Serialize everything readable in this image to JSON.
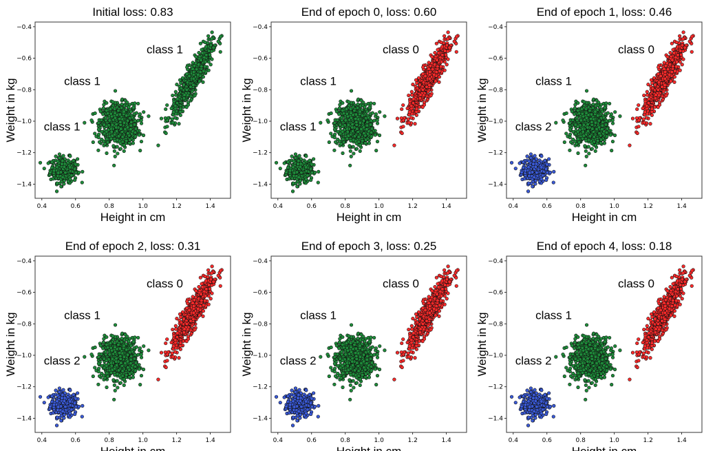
{
  "chart_data": [
    {
      "type": "scatter",
      "title": "Initial loss: 0.83",
      "xlabel": "Height in cm",
      "ylabel": "Weight in kg",
      "xlim": [
        0.36,
        1.52
      ],
      "ylim": [
        -1.49,
        -0.37
      ],
      "xticks": [
        "0.4",
        "0.6",
        "0.8",
        "1.0",
        "1.2",
        "1.4"
      ],
      "yticks": [
        "-0.4",
        "-0.6",
        "-0.8",
        "-1.0",
        "-1.2",
        "-1.4"
      ],
      "clusters": [
        {
          "label": "class 1",
          "color": "#1e8c3a",
          "center": [
            0.53,
            -1.31
          ],
          "n": 300
        },
        {
          "label": "class 1",
          "color": "#1e8c3a",
          "center": [
            0.86,
            -1.02
          ],
          "n": 800
        },
        {
          "label": "class 1",
          "color": "#1e8c3a",
          "center": [
            1.29,
            -0.74
          ],
          "n": 700
        }
      ]
    },
    {
      "type": "scatter",
      "title": "End of epoch 0, loss: 0.60",
      "xlabel": "Height in cm",
      "ylabel": "Weight in kg",
      "xlim": [
        0.36,
        1.52
      ],
      "ylim": [
        -1.49,
        -0.37
      ],
      "xticks": [
        "0.4",
        "0.6",
        "0.8",
        "1.0",
        "1.2",
        "1.4"
      ],
      "yticks": [
        "-0.4",
        "-0.6",
        "-0.8",
        "-1.0",
        "-1.2",
        "-1.4"
      ],
      "clusters": [
        {
          "label": "class 1",
          "color": "#1e8c3a",
          "center": [
            0.53,
            -1.31
          ],
          "n": 300
        },
        {
          "label": "class 1",
          "color": "#1e8c3a",
          "center": [
            0.86,
            -1.02
          ],
          "n": 800
        },
        {
          "label": "class 0",
          "color": "#ff2a2a",
          "center": [
            1.29,
            -0.74
          ],
          "n": 700
        }
      ]
    },
    {
      "type": "scatter",
      "title": "End of epoch 1, loss: 0.46",
      "xlabel": "Height in cm",
      "ylabel": "Weight in kg",
      "xlim": [
        0.36,
        1.52
      ],
      "ylim": [
        -1.49,
        -0.37
      ],
      "xticks": [
        "0.4",
        "0.6",
        "0.8",
        "1.0",
        "1.2",
        "1.4"
      ],
      "yticks": [
        "-0.4",
        "-0.6",
        "-0.8",
        "-1.0",
        "-1.2",
        "-1.4"
      ],
      "clusters": [
        {
          "label": "class 2",
          "color": "#3a5ad8",
          "center": [
            0.53,
            -1.31
          ],
          "n": 300
        },
        {
          "label": "class 1",
          "color": "#1e8c3a",
          "center": [
            0.86,
            -1.02
          ],
          "n": 800
        },
        {
          "label": "class 0",
          "color": "#ff2a2a",
          "center": [
            1.29,
            -0.74
          ],
          "n": 700
        }
      ]
    },
    {
      "type": "scatter",
      "title": "End of epoch 2, loss: 0.31",
      "xlabel": "Height in cm",
      "ylabel": "Weight in kg",
      "xlim": [
        0.36,
        1.52
      ],
      "ylim": [
        -1.49,
        -0.37
      ],
      "xticks": [
        "0.4",
        "0.6",
        "0.8",
        "1.0",
        "1.2",
        "1.4"
      ],
      "yticks": [
        "-0.4",
        "-0.6",
        "-0.8",
        "-1.0",
        "-1.2",
        "-1.4"
      ],
      "clusters": [
        {
          "label": "class 2",
          "color": "#3a5ad8",
          "center": [
            0.53,
            -1.31
          ],
          "n": 300
        },
        {
          "label": "class 1",
          "color": "#1e8c3a",
          "center": [
            0.86,
            -1.02
          ],
          "n": 800
        },
        {
          "label": "class 0",
          "color": "#ff2a2a",
          "center": [
            1.29,
            -0.74
          ],
          "n": 700
        }
      ]
    },
    {
      "type": "scatter",
      "title": "End of epoch 3, loss: 0.25",
      "xlabel": "Height in cm",
      "ylabel": "Weight in kg",
      "xlim": [
        0.36,
        1.52
      ],
      "ylim": [
        -1.49,
        -0.37
      ],
      "xticks": [
        "0.4",
        "0.6",
        "0.8",
        "1.0",
        "1.2",
        "1.4"
      ],
      "yticks": [
        "-0.4",
        "-0.6",
        "-0.8",
        "-1.0",
        "-1.2",
        "-1.4"
      ],
      "clusters": [
        {
          "label": "class 2",
          "color": "#3a5ad8",
          "center": [
            0.53,
            -1.31
          ],
          "n": 300
        },
        {
          "label": "class 1",
          "color": "#1e8c3a",
          "center": [
            0.86,
            -1.02
          ],
          "n": 800
        },
        {
          "label": "class 0",
          "color": "#ff2a2a",
          "center": [
            1.29,
            -0.74
          ],
          "n": 700
        }
      ]
    },
    {
      "type": "scatter",
      "title": "End of epoch 4, loss: 0.18",
      "xlabel": "Height in cm",
      "ylabel": "Weight in kg",
      "xlim": [
        0.36,
        1.52
      ],
      "ylim": [
        -1.49,
        -0.37
      ],
      "xticks": [
        "0.4",
        "0.6",
        "0.8",
        "1.0",
        "1.2",
        "1.4"
      ],
      "yticks": [
        "-0.4",
        "-0.6",
        "-0.8",
        "-1.0",
        "-1.2",
        "-1.4"
      ],
      "clusters": [
        {
          "label": "class 2",
          "color": "#3a5ad8",
          "center": [
            0.53,
            -1.31
          ],
          "n": 300
        },
        {
          "label": "class 1",
          "color": "#1e8c3a",
          "center": [
            0.86,
            -1.02
          ],
          "n": 800
        },
        {
          "label": "class 0",
          "color": "#ff2a2a",
          "center": [
            1.29,
            -0.74
          ],
          "n": 700
        }
      ]
    }
  ]
}
